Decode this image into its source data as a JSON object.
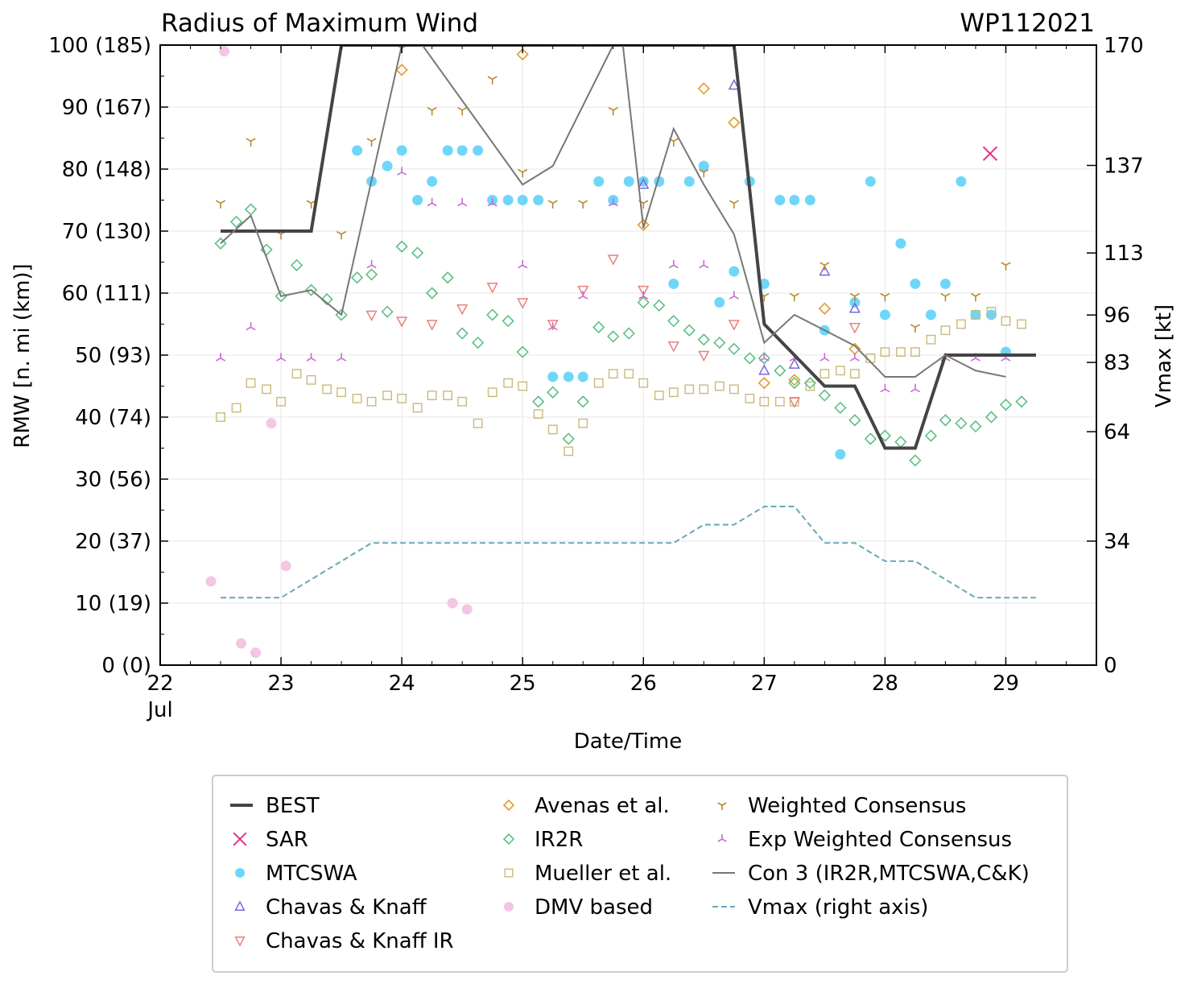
{
  "chart_data": {
    "type": "scatter",
    "title": "Radius of Maximum Wind",
    "title_right": "WP112021",
    "xlabel": "Date/Time",
    "ylabel": "RMW [n. mi (km)]",
    "ylabel_right": "Vmax [kt]",
    "xlim": [
      22,
      29.75
    ],
    "ylim": [
      0,
      100
    ],
    "ylim_right": [
      0,
      170
    ],
    "grid": true,
    "legend_position": "bottom",
    "x_tick_labels": [
      "22",
      "23",
      "24",
      "25",
      "26",
      "27",
      "28",
      "29"
    ],
    "x_tick_month": "Jul",
    "y_tick_labels": [
      "0 (0)",
      "10 (19)",
      "20 (37)",
      "30 (56)",
      "40 (74)",
      "50 (93)",
      "60 (111)",
      "70 (130)",
      "80 (148)",
      "90 (167)",
      "100 (185)"
    ],
    "y_right_ticks": [
      0,
      34,
      64,
      83,
      96,
      113,
      137,
      170
    ],
    "legend": [
      "BEST",
      "SAR",
      "MTCSWA",
      "Chavas & Knaff",
      "Chavas & Knaff IR",
      "Avenas et al.",
      "IR2R",
      "Mueller et al.",
      "DMV based",
      "Weighted Consensus",
      "Exp Weighted Consensus",
      "Con 3 (IR2R,MTCSWA,C&K)",
      "Vmax (right axis)"
    ],
    "series": [
      {
        "name": "BEST",
        "kind": "line",
        "color": "#444444",
        "x": [
          22.5,
          23.25,
          23.5,
          26.75,
          27.0,
          27.5,
          27.75,
          28.0,
          28.25,
          28.5,
          29.25
        ],
        "y": [
          70,
          70,
          100,
          100,
          55,
          45,
          45,
          35,
          35,
          50,
          50
        ]
      },
      {
        "name": "SAR",
        "kind": "x",
        "color": "#e0338f",
        "x": [
          28.87
        ],
        "y": [
          82.5
        ]
      },
      {
        "name": "MTCSWA",
        "kind": "dot",
        "color": "#6fd6fa",
        "x": [
          23.63,
          23.75,
          23.88,
          24.0,
          24.13,
          24.25,
          24.38,
          24.5,
          24.63,
          24.75,
          24.88,
          25.0,
          25.13,
          25.25,
          25.38,
          25.5,
          25.63,
          25.75,
          25.88,
          26.0,
          26.13,
          26.25,
          26.38,
          26.5,
          26.63,
          26.75,
          26.88,
          27.0,
          27.13,
          27.25,
          27.38,
          27.5,
          27.63,
          27.75,
          27.88,
          28.0,
          28.13,
          28.25,
          28.38,
          28.5,
          28.63,
          28.75,
          28.88,
          29.0
        ],
        "y": [
          83,
          78,
          80.5,
          83,
          75,
          78,
          83,
          83,
          83,
          75,
          75,
          75,
          75,
          46.5,
          46.5,
          46.5,
          78,
          75,
          78,
          78,
          78,
          61.5,
          78,
          80.5,
          58.5,
          63.5,
          78,
          61.5,
          75,
          75,
          75,
          54,
          34,
          58.5,
          78,
          56.5,
          68,
          61.5,
          56.5,
          61.5,
          78,
          56.5,
          56.5,
          50.5
        ]
      },
      {
        "name": "Chavas & Knaff",
        "kind": "tri-up",
        "color": "#7a68d6",
        "x": [
          26.0,
          26.75,
          27.0,
          27.25,
          27.5,
          27.75
        ],
        "y": [
          77.5,
          93.5,
          47.5,
          48.5,
          63.5,
          57.5
        ]
      },
      {
        "name": "Chavas & Knaff IR",
        "kind": "tri-down",
        "color": "#e8807f",
        "x": [
          23.75,
          24.0,
          24.25,
          24.5,
          24.75,
          25.0,
          25.25,
          25.5,
          25.75,
          26.0,
          26.25,
          26.5,
          26.75,
          27.25,
          27.75
        ],
        "y": [
          56.5,
          55.5,
          55,
          57.5,
          61,
          58.5,
          55,
          60.5,
          65.5,
          60.5,
          51.5,
          50,
          55,
          42.5,
          54.5
        ]
      },
      {
        "name": "Avenas et al.",
        "kind": "diamond",
        "color": "#e39a2a",
        "x": [
          24.0,
          25.0,
          26.0,
          26.5,
          26.75,
          27.0,
          27.25,
          27.5,
          27.75
        ],
        "y": [
          96,
          98.5,
          71,
          93,
          87.5,
          45.5,
          46,
          57.5,
          51
        ]
      },
      {
        "name": "IR2R",
        "kind": "diamond",
        "color": "#5fbf84",
        "x": [
          22.5,
          22.63,
          22.75,
          22.88,
          23.0,
          23.13,
          23.25,
          23.38,
          23.5,
          23.63,
          23.75,
          23.88,
          24.0,
          24.13,
          24.25,
          24.38,
          24.5,
          24.63,
          24.75,
          24.88,
          25.0,
          25.13,
          25.25,
          25.38,
          25.5,
          25.63,
          25.75,
          25.88,
          26.0,
          26.13,
          26.25,
          26.38,
          26.5,
          26.63,
          26.75,
          26.88,
          27.0,
          27.13,
          27.25,
          27.38,
          27.5,
          27.63,
          27.75,
          27.88,
          28.0,
          28.13,
          28.25,
          28.38,
          28.5,
          28.63,
          28.75,
          28.88,
          29.0,
          29.13
        ],
        "y": [
          68,
          71.5,
          73.5,
          67,
          59.5,
          64.5,
          60.5,
          59,
          56.5,
          62.5,
          63,
          57,
          67.5,
          66.5,
          60,
          62.5,
          53.5,
          52,
          56.5,
          55.5,
          50.5,
          42.5,
          44,
          36.5,
          42.5,
          54.5,
          53,
          53.5,
          58.5,
          58,
          55.5,
          54,
          52.5,
          52,
          51,
          49.5,
          49.5,
          47.5,
          45.5,
          45.5,
          43.5,
          41.5,
          39.5,
          36.5,
          37,
          36,
          33,
          37,
          39.5,
          39,
          38.5,
          40,
          42,
          42.5
        ]
      },
      {
        "name": "Mueller et al.",
        "kind": "square",
        "color": "#c9b97a",
        "x": [
          22.5,
          22.63,
          22.75,
          22.88,
          23.0,
          23.13,
          23.25,
          23.38,
          23.5,
          23.63,
          23.75,
          23.88,
          24.0,
          24.13,
          24.25,
          24.38,
          24.5,
          24.63,
          24.75,
          24.88,
          25.0,
          25.13,
          25.25,
          25.38,
          25.5,
          25.63,
          25.75,
          25.88,
          26.0,
          26.13,
          26.25,
          26.38,
          26.5,
          26.63,
          26.75,
          26.88,
          27.0,
          27.13,
          27.25,
          27.38,
          27.5,
          27.63,
          27.75,
          27.88,
          28.0,
          28.13,
          28.25,
          28.38,
          28.5,
          28.63,
          28.75,
          28.88,
          29.0,
          29.13
        ],
        "y": [
          40,
          41.5,
          45.5,
          44.5,
          42.5,
          47,
          46,
          44.5,
          44,
          43,
          42.5,
          43.5,
          43,
          41.5,
          43.5,
          43.5,
          42.5,
          39,
          44,
          45.5,
          45,
          40.5,
          38,
          34.5,
          39,
          45.5,
          47,
          47,
          45.5,
          43.5,
          44,
          44.5,
          44.5,
          45,
          44.5,
          43,
          42.5,
          42.5,
          42.5,
          45,
          47,
          47.5,
          47,
          49.5,
          50.5,
          50.5,
          50.5,
          52.5,
          54,
          55,
          56.5,
          57,
          55.5,
          55
        ]
      },
      {
        "name": "DMV based",
        "kind": "dot",
        "color": "#f3c6e3",
        "x": [
          22.42,
          22.53,
          22.67,
          22.79,
          22.92,
          23.04,
          24.42,
          24.54
        ],
        "y": [
          13.5,
          99,
          3.5,
          2,
          39,
          16,
          10,
          9
        ]
      },
      {
        "name": "Weighted Consensus",
        "kind": "tri-down3",
        "color": "#b8892a",
        "x": [
          22.5,
          22.75,
          23.0,
          23.25,
          23.5,
          23.75,
          24.0,
          24.25,
          24.5,
          24.75,
          25.0,
          25.25,
          25.5,
          25.75,
          26.0,
          26.25,
          26.5,
          26.75,
          27.0,
          27.25,
          27.5,
          27.75,
          28.0,
          28.25,
          28.5,
          28.75,
          29.0
        ],
        "y": [
          74.5,
          84.5,
          69.5,
          74.5,
          69.5,
          84.5,
          99.5,
          89.5,
          89.5,
          94.5,
          79.5,
          74.5,
          74.5,
          89.5,
          74.5,
          84.5,
          79.5,
          74.5,
          59.5,
          59.5,
          64.5,
          59.5,
          59.5,
          54.5,
          59.5,
          59.5,
          64.5
        ]
      },
      {
        "name": "Exp Weighted Consensus",
        "kind": "tri-up3",
        "color": "#c86ad4",
        "x": [
          22.5,
          22.75,
          23.0,
          23.25,
          23.5,
          23.75,
          24.0,
          24.25,
          24.5,
          24.75,
          25.0,
          25.25,
          25.5,
          25.75,
          26.0,
          26.25,
          26.5,
          26.75,
          27.0,
          27.25,
          27.5,
          27.75,
          28.0,
          28.25,
          28.5,
          28.75,
          29.0
        ],
        "y": [
          49.5,
          54.5,
          49.5,
          49.5,
          49.5,
          64.5,
          79.5,
          74.5,
          74.5,
          74.5,
          64.5,
          54.5,
          59.5,
          74.5,
          59.5,
          64.5,
          64.5,
          59.5,
          49.5,
          49.5,
          49.5,
          49.5,
          44.5,
          44.5,
          49.5,
          49.5,
          49.5
        ]
      },
      {
        "name": "Con 3 (IR2R,MTCSWA,C&K)",
        "kind": "line",
        "color": "#777777",
        "x": [
          22.5,
          22.75,
          23.0,
          23.25,
          23.5,
          24.0,
          24.17,
          25.0,
          25.25,
          25.75,
          25.83,
          26.0,
          26.25,
          26.5,
          26.75,
          27.0,
          27.25,
          27.75,
          28.0,
          28.25,
          28.5,
          28.75,
          29.0
        ],
        "y": [
          68,
          72.5,
          59.5,
          60.5,
          56.5,
          100,
          100,
          77.5,
          80.5,
          100,
          100,
          70.5,
          86.5,
          77.5,
          69.5,
          52,
          56.5,
          51.5,
          46.5,
          46.5,
          50,
          47.5,
          46.5
        ]
      },
      {
        "name": "Vmax (right axis)",
        "kind": "dashed",
        "color": "#66a9b8",
        "axis": "right",
        "x": [
          22.5,
          23.0,
          23.75,
          25.0,
          26.25,
          26.5,
          26.75,
          27.0,
          27.25,
          27.5,
          27.75,
          28.0,
          28.25,
          28.75,
          29.25
        ],
        "y": [
          18.5,
          18.5,
          33.5,
          33.5,
          33.5,
          38.5,
          38.5,
          43.5,
          43.5,
          33.5,
          33.5,
          28.5,
          28.5,
          18.5,
          18.5
        ]
      }
    ]
  }
}
